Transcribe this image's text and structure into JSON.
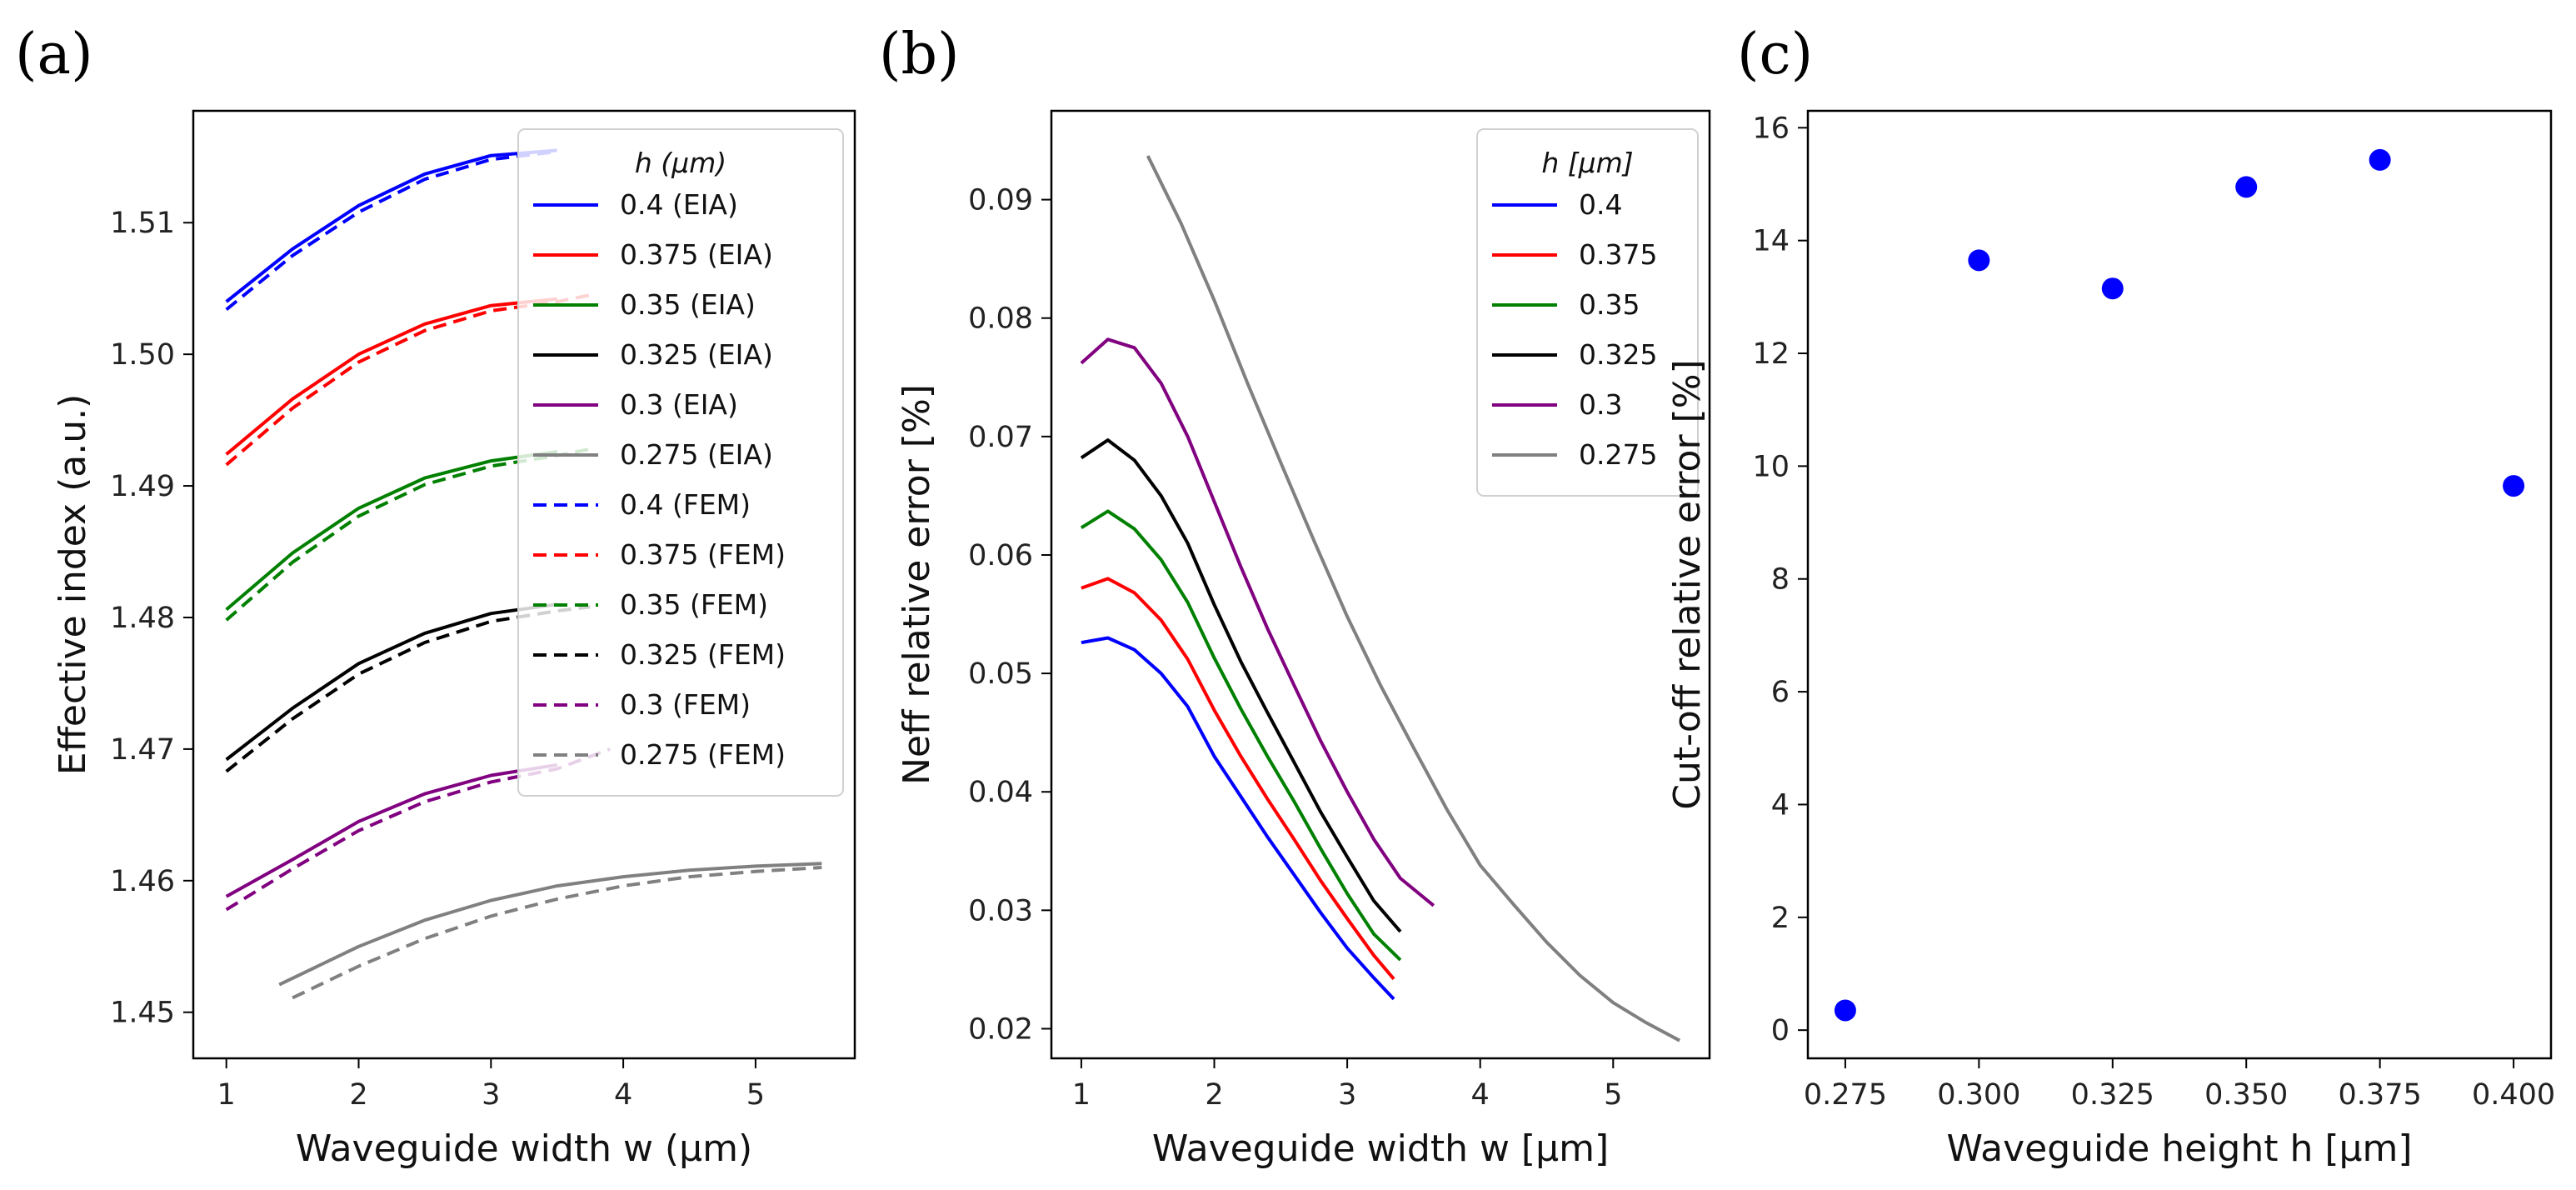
{
  "chart_data": [
    {
      "panel": "(a)",
      "type": "line",
      "xlabel": "Waveguide width w (μm)",
      "ylabel": "Effective index (a.u.)",
      "xlim": [
        0.75,
        5.75
      ],
      "ylim": [
        1.4465,
        1.5185
      ],
      "xticks": [
        1,
        2,
        3,
        4,
        5
      ],
      "yticks": [
        1.45,
        1.46,
        1.47,
        1.48,
        1.49,
        1.5,
        1.51
      ],
      "ytick_labels": [
        "1.45",
        "1.46",
        "1.47",
        "1.48",
        "1.49",
        "1.50",
        "1.51"
      ],
      "legend_title": "h (μm)",
      "legend_loc": "upper-right",
      "series": [
        {
          "name": "0.4 (EIA)",
          "color": "#0000ff",
          "dash": "solid",
          "x": [
            1.0,
            1.5,
            2.0,
            2.5,
            3.0,
            3.5
          ],
          "y": [
            1.504,
            1.508,
            1.5113,
            1.5137,
            1.5151,
            1.5155
          ]
        },
        {
          "name": "0.375 (EIA)",
          "color": "#ff0000",
          "dash": "solid",
          "x": [
            1.0,
            1.5,
            2.0,
            2.5,
            3.0,
            3.5
          ],
          "y": [
            1.4924,
            1.4966,
            1.5,
            1.5023,
            1.5037,
            1.5042
          ]
        },
        {
          "name": "0.35 (EIA)",
          "color": "#008000",
          "dash": "solid",
          "x": [
            1.0,
            1.5,
            2.0,
            2.5,
            3.0,
            3.5
          ],
          "y": [
            1.4806,
            1.4849,
            1.4883,
            1.4906,
            1.4919,
            1.4926
          ]
        },
        {
          "name": "0.325 (EIA)",
          "color": "#000000",
          "dash": "solid",
          "x": [
            1.0,
            1.5,
            2.0,
            2.5,
            3.0,
            3.5
          ],
          "y": [
            1.4692,
            1.4731,
            1.4765,
            1.4788,
            1.4803,
            1.481
          ]
        },
        {
          "name": "0.3 (EIA)",
          "color": "#800080",
          "dash": "solid",
          "x": [
            1.0,
            1.5,
            2.0,
            2.5,
            3.0,
            3.5
          ],
          "y": [
            1.4588,
            1.4616,
            1.4645,
            1.4666,
            1.468,
            1.4688
          ]
        },
        {
          "name": "0.275 (EIA)",
          "color": "#808080",
          "dash": "solid",
          "x": [
            1.4,
            2.0,
            2.5,
            3.0,
            3.5,
            4.0,
            4.5,
            5.0,
            5.5
          ],
          "y": [
            1.4521,
            1.455,
            1.457,
            1.4585,
            1.4596,
            1.4603,
            1.4608,
            1.4611,
            1.4613
          ]
        },
        {
          "name": "0.4 (FEM)",
          "color": "#0000ff",
          "dash": "dashed",
          "x": [
            1.0,
            1.5,
            2.0,
            2.5,
            3.0,
            3.5
          ],
          "y": [
            1.5034,
            1.5075,
            1.5108,
            1.5133,
            1.5148,
            1.5154
          ]
        },
        {
          "name": "0.375 (FEM)",
          "color": "#ff0000",
          "dash": "dashed",
          "x": [
            1.0,
            1.5,
            2.0,
            2.5,
            3.0,
            3.5,
            3.75
          ],
          "y": [
            1.4916,
            1.4959,
            1.4994,
            1.5018,
            1.5033,
            1.504,
            1.5045
          ]
        },
        {
          "name": "0.35 (FEM)",
          "color": "#008000",
          "dash": "dashed",
          "x": [
            1.0,
            1.5,
            2.0,
            2.5,
            3.0,
            3.5,
            3.75
          ],
          "y": [
            1.4798,
            1.4842,
            1.4877,
            1.4901,
            1.4915,
            1.4923,
            1.4928
          ]
        },
        {
          "name": "0.325 (FEM)",
          "color": "#000000",
          "dash": "dashed",
          "x": [
            1.0,
            1.5,
            2.0,
            2.5,
            3.0,
            3.5,
            3.75
          ],
          "y": [
            1.4683,
            1.4723,
            1.4757,
            1.4781,
            1.4797,
            1.4805,
            1.4808
          ]
        },
        {
          "name": "0.3 (FEM)",
          "color": "#800080",
          "dash": "dashed",
          "x": [
            1.0,
            1.5,
            2.0,
            2.5,
            3.0,
            3.5,
            3.9
          ],
          "y": [
            1.4578,
            1.4609,
            1.4638,
            1.466,
            1.4675,
            1.4685,
            1.47
          ]
        },
        {
          "name": "0.275 (FEM)",
          "color": "#808080",
          "dash": "dashed",
          "x": [
            1.5,
            2.0,
            2.5,
            3.0,
            3.5,
            4.0,
            4.5,
            5.0,
            5.5
          ],
          "y": [
            1.4511,
            1.4535,
            1.4556,
            1.4573,
            1.4586,
            1.4596,
            1.4603,
            1.4607,
            1.461
          ]
        }
      ]
    },
    {
      "panel": "(b)",
      "type": "line",
      "xlabel": "Waveguide width w [μm]",
      "ylabel": "Neff relative error [%]",
      "xlim": [
        0.775,
        5.725
      ],
      "ylim": [
        0.0175,
        0.0975
      ],
      "xticks": [
        1,
        2,
        3,
        4,
        5
      ],
      "yticks": [
        0.02,
        0.03,
        0.04,
        0.05,
        0.06,
        0.07,
        0.08,
        0.09
      ],
      "ytick_labels": [
        "0.02",
        "0.03",
        "0.04",
        "0.05",
        "0.06",
        "0.07",
        "0.08",
        "0.09"
      ],
      "legend_title": "h [μm]",
      "legend_loc": "upper-right",
      "series": [
        {
          "name": "0.4",
          "color": "#0000ff",
          "x": [
            1.0,
            1.2,
            1.4,
            1.6,
            1.8,
            2.0,
            2.2,
            2.4,
            2.6,
            2.8,
            3.0,
            3.2,
            3.35
          ],
          "y": [
            0.0526,
            0.053,
            0.052,
            0.05,
            0.0472,
            0.043,
            0.0396,
            0.0362,
            0.033,
            0.0298,
            0.0268,
            0.0243,
            0.0225
          ]
        },
        {
          "name": "0.375",
          "color": "#ff0000",
          "x": [
            1.0,
            1.2,
            1.4,
            1.6,
            1.8,
            2.0,
            2.2,
            2.4,
            2.6,
            2.8,
            3.0,
            3.2,
            3.35
          ],
          "y": [
            0.0572,
            0.058,
            0.0568,
            0.0545,
            0.0512,
            0.0469,
            0.043,
            0.0394,
            0.036,
            0.0325,
            0.0293,
            0.0262,
            0.0242
          ]
        },
        {
          "name": "0.35",
          "color": "#008000",
          "x": [
            1.0,
            1.2,
            1.4,
            1.6,
            1.8,
            2.0,
            2.2,
            2.4,
            2.6,
            2.8,
            3.0,
            3.2,
            3.4
          ],
          "y": [
            0.0623,
            0.0637,
            0.0622,
            0.0596,
            0.056,
            0.0513,
            0.047,
            0.043,
            0.0392,
            0.0352,
            0.0314,
            0.028,
            0.0258
          ]
        },
        {
          "name": "0.325",
          "color": "#000000",
          "x": [
            1.0,
            1.2,
            1.4,
            1.6,
            1.8,
            2.0,
            2.2,
            2.4,
            2.6,
            2.8,
            3.0,
            3.2,
            3.4
          ],
          "y": [
            0.0682,
            0.0697,
            0.068,
            0.065,
            0.061,
            0.0558,
            0.051,
            0.0467,
            0.0425,
            0.0383,
            0.0345,
            0.0308,
            0.0282
          ]
        },
        {
          "name": "0.3",
          "color": "#800080",
          "x": [
            1.0,
            1.2,
            1.4,
            1.6,
            1.8,
            2.0,
            2.2,
            2.4,
            2.6,
            2.8,
            3.0,
            3.2,
            3.4,
            3.65
          ],
          "y": [
            0.0762,
            0.0782,
            0.0775,
            0.0745,
            0.07,
            0.0645,
            0.059,
            0.0538,
            0.049,
            0.0443,
            0.04,
            0.036,
            0.0327,
            0.0304
          ]
        },
        {
          "name": "0.275",
          "color": "#808080",
          "x": [
            1.5,
            1.75,
            2.0,
            2.25,
            2.5,
            2.75,
            3.0,
            3.25,
            3.5,
            3.75,
            4.0,
            4.25,
            4.5,
            4.75,
            5.0,
            5.25,
            5.5
          ],
          "y": [
            0.0937,
            0.088,
            0.0815,
            0.0745,
            0.0678,
            0.0612,
            0.0548,
            0.049,
            0.0437,
            0.0385,
            0.0338,
            0.0305,
            0.0273,
            0.0245,
            0.0222,
            0.0205,
            0.019
          ]
        }
      ]
    },
    {
      "panel": "(c)",
      "type": "scatter",
      "xlabel": "Waveguide height h [μm]",
      "ylabel": "Cut-off relative error [%]",
      "xlim": [
        0.268,
        0.407
      ],
      "ylim": [
        -0.5,
        16.3
      ],
      "xticks": [
        0.275,
        0.3,
        0.325,
        0.35,
        0.375,
        0.4
      ],
      "xtick_labels": [
        "0.275",
        "0.300",
        "0.325",
        "0.350",
        "0.375",
        "0.400"
      ],
      "yticks": [
        0,
        2,
        4,
        6,
        8,
        10,
        12,
        14,
        16
      ],
      "ytick_labels": [
        "0",
        "2",
        "4",
        "6",
        "8",
        "10",
        "12",
        "14",
        "16"
      ],
      "color": "#0000ff",
      "x": [
        0.275,
        0.3,
        0.325,
        0.35,
        0.375,
        0.4
      ],
      "y": [
        0.35,
        13.65,
        13.15,
        14.95,
        15.43,
        9.65
      ]
    }
  ]
}
